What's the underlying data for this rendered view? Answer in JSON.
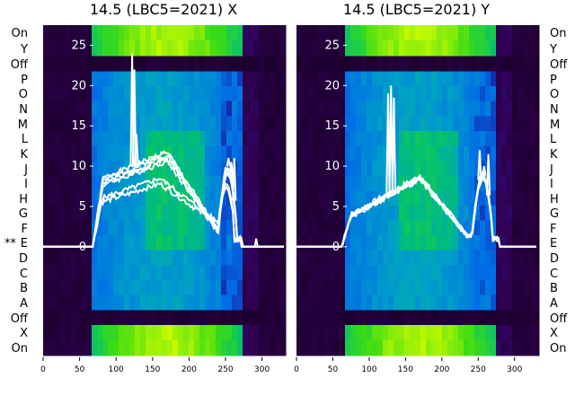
{
  "chart_data": [
    {
      "type": "line",
      "title": "14.5 (LBC5=2021) X",
      "xlabel": "",
      "ylabel": "",
      "xlim": [
        0,
        330
      ],
      "ylim": [
        -13.5,
        27.5
      ],
      "x_ticks": [
        "0",
        "50",
        "100",
        "150",
        "200",
        "250",
        "300"
      ],
      "y_ticks": [
        "0",
        "5",
        "10",
        "15",
        "20",
        "25"
      ],
      "row_labels": [
        "On",
        "Y",
        "Off",
        "P",
        "O",
        "N",
        "M",
        "L",
        "K",
        "J",
        "I",
        "H",
        "G",
        "F",
        "E",
        "D",
        "C",
        "B",
        "A",
        "Off",
        "X",
        "On"
      ],
      "marker_label": "**",
      "marked_row": "E",
      "background": "heatmap",
      "series": [
        {
          "profile": "main",
          "scale": 1.0,
          "noise_seed": 1
        },
        {
          "profile": "main",
          "scale": 0.97,
          "noise_seed": 2
        },
        {
          "profile": "main",
          "scale": 0.93,
          "noise_seed": 3
        },
        {
          "profile": "main",
          "scale": 0.9,
          "noise_seed": 4
        },
        {
          "profile": "low",
          "scale": 1.0,
          "noise_seed": 5
        },
        {
          "profile": "low",
          "scale": 0.92,
          "noise_seed": 6
        }
      ],
      "spikes": [
        {
          "x": 122,
          "y": 24
        },
        {
          "x": 125,
          "y": 22
        },
        {
          "x": 128,
          "y": 14
        },
        {
          "x": 254,
          "y": 11
        },
        {
          "x": 258,
          "y": 10.5
        },
        {
          "x": 262,
          "y": 11
        },
        {
          "x": 292,
          "y": 1
        }
      ]
    },
    {
      "type": "line",
      "title": "14.5 (LBC5=2021) Y",
      "xlabel": "",
      "ylabel": "",
      "xlim": [
        0,
        330
      ],
      "ylim": [
        -13.5,
        27.5
      ],
      "x_ticks": [
        "0",
        "50",
        "100",
        "150",
        "200",
        "250",
        "300"
      ],
      "y_ticks": [
        "0",
        "5",
        "10",
        "15",
        "20",
        "25"
      ],
      "row_labels": [
        "On",
        "Y",
        "Off",
        "P",
        "O",
        "N",
        "M",
        "L",
        "K",
        "J",
        "I",
        "H",
        "G",
        "F",
        "E",
        "D",
        "C",
        "B",
        "A",
        "Off",
        "X",
        "On"
      ],
      "background": "heatmap",
      "series": [
        {
          "profile": "y",
          "scale": 1.0,
          "noise_seed": 7
        },
        {
          "profile": "y",
          "scale": 0.98,
          "noise_seed": 8
        },
        {
          "profile": "y",
          "scale": 0.96,
          "noise_seed": 9
        },
        {
          "profile": "y",
          "scale": 0.94,
          "noise_seed": 10
        }
      ],
      "spikes": [
        {
          "x": 126,
          "y": 19
        },
        {
          "x": 130,
          "y": 20
        },
        {
          "x": 134,
          "y": 18.5
        },
        {
          "x": 252,
          "y": 12
        },
        {
          "x": 258,
          "y": 10
        },
        {
          "x": 264,
          "y": 11.5
        }
      ]
    }
  ]
}
